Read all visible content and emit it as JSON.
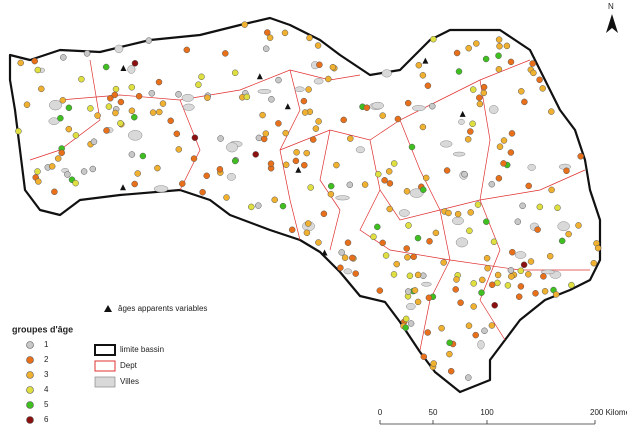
{
  "north": "N",
  "legend": {
    "title": "groupes d'âge",
    "groups": [
      {
        "label": "1",
        "color": "#c8c8c8"
      },
      {
        "label": "2",
        "color": "#e8701a"
      },
      {
        "label": "3",
        "color": "#f0b030"
      },
      {
        "label": "4",
        "color": "#dfe040"
      },
      {
        "label": "5",
        "color": "#40c020"
      },
      {
        "label": "6",
        "color": "#8b1010"
      }
    ],
    "variable_ages": "âges apparents variables",
    "basin_limit": "limite bassin",
    "dept": "Dept",
    "cities": "Villes"
  },
  "scale": {
    "labels": [
      "0",
      "50",
      "100",
      "200 Kilome"
    ]
  }
}
